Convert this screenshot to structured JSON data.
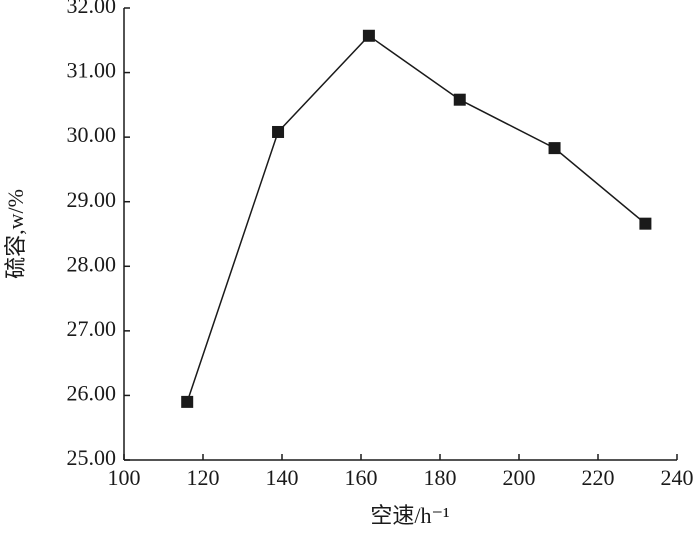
{
  "chart_data": {
    "type": "line",
    "x_label": "空速/h⁻¹",
    "y_label": "硫容,w/%",
    "series": [
      {
        "color": "#1a1a1a",
        "x": [
          116,
          139,
          162,
          185,
          209,
          232
        ],
        "values": [
          25.9,
          30.08,
          31.57,
          30.58,
          29.83,
          28.66
        ]
      }
    ],
    "xlim": [
      100,
      240
    ],
    "xticks": [
      100,
      120,
      140,
      160,
      180,
      200,
      220,
      240
    ],
    "ylim": [
      25,
      32
    ],
    "yticks": [
      {
        "value": 25,
        "label": "25.00"
      },
      {
        "value": 26,
        "label": "26.00"
      },
      {
        "value": 27,
        "label": "27.00"
      },
      {
        "value": 28,
        "label": "28.00"
      },
      {
        "value": 29,
        "label": "29.00"
      },
      {
        "value": 30,
        "label": "30.00"
      },
      {
        "value": 31,
        "label": "31.00"
      },
      {
        "value": 32,
        "label": "32.00"
      }
    ],
    "grid": false
  }
}
